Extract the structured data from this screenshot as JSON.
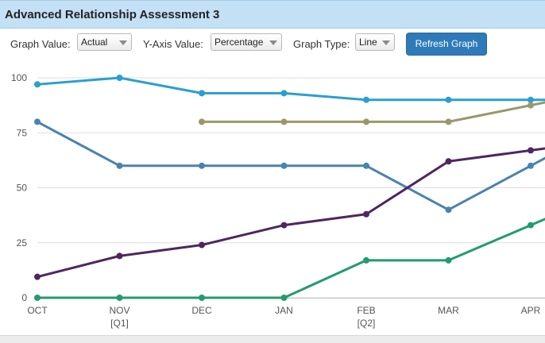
{
  "panel": {
    "title": "Advanced Relationship Assessment 3"
  },
  "toolbar": {
    "graph_value_label": "Graph Value:",
    "graph_value_selected": "Actual",
    "y_axis_value_label": "Y-Axis Value:",
    "y_axis_value_selected": "Percentage",
    "graph_type_label": "Graph Type:",
    "graph_type_selected": "Line",
    "refresh_label": "Refresh Graph"
  },
  "chart_data": {
    "type": "line",
    "x": [
      "OCT",
      "NOV",
      "DEC",
      "JAN",
      "FEB",
      "MAR",
      "APR"
    ],
    "quarter_labels": [
      "",
      "[Q1]",
      "",
      "",
      "[Q2]",
      "",
      ""
    ],
    "ylim": [
      0,
      100
    ],
    "yticks": [
      0,
      25,
      50,
      75,
      100
    ],
    "grid": true,
    "series": [
      {
        "color": "#2a9fd0",
        "values": [
          97,
          100,
          93,
          93,
          90,
          90,
          90
        ],
        "extends": true
      },
      {
        "color": "#9a9868",
        "values": [
          null,
          null,
          80,
          80,
          80,
          80,
          87.5
        ],
        "extends": true
      },
      {
        "color": "#4a83ad",
        "values": [
          80,
          60,
          60,
          60,
          60,
          40,
          60
        ],
        "extends": true
      },
      {
        "color": "#4e2660",
        "values": [
          9.5,
          19,
          24,
          33,
          38,
          62,
          67
        ],
        "extends": true
      },
      {
        "color": "#239b6e",
        "values": [
          0,
          0,
          0,
          0,
          17,
          17,
          33
        ],
        "extends": true
      }
    ]
  }
}
